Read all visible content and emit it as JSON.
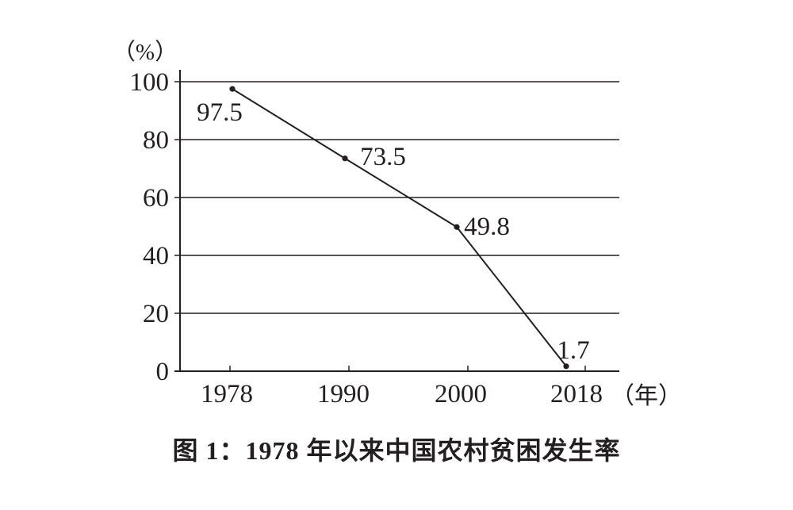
{
  "chart_data": {
    "type": "line",
    "title": "图 1：1978 年以来中国农村贫困发生率",
    "y_unit_label": "（%）",
    "x_unit_label": "（年）",
    "categories": [
      "1978",
      "1990",
      "2000",
      "2018"
    ],
    "values": [
      97.5,
      73.5,
      49.8,
      1.7
    ],
    "point_labels": [
      "97.5",
      "73.5",
      "49.8",
      "1.7"
    ],
    "y_ticks": [
      0,
      20,
      40,
      60,
      80,
      100
    ],
    "ylim": [
      0,
      100
    ],
    "grid": "horizontal",
    "legend": "none",
    "line_color": "#231f20",
    "text_color": "#231f20",
    "background_color": "#ffffff"
  }
}
